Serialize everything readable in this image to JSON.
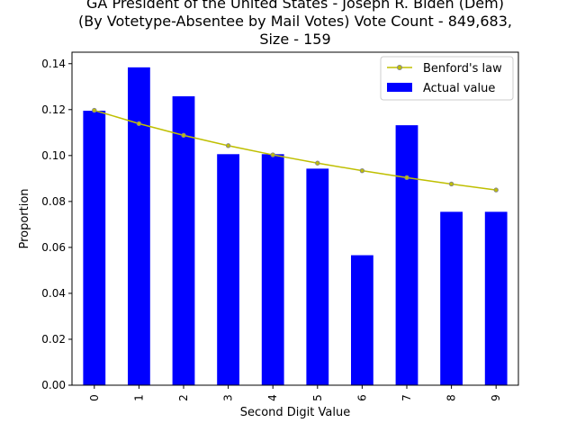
{
  "chart_data": {
    "type": "bar",
    "title_lines": [
      "GA President of the United States - Joseph R. Biden (Dem)",
      "(By Votetype-Absentee by Mail Votes) Vote Count - 849,683,",
      "Size - 159"
    ],
    "xlabel": "Second Digit Value",
    "ylabel": "Proportion",
    "categories": [
      "0",
      "1",
      "2",
      "3",
      "4",
      "5",
      "6",
      "7",
      "8",
      "9"
    ],
    "ylim": [
      0,
      0.145
    ],
    "yticks": [
      "0.00",
      "0.02",
      "0.04",
      "0.06",
      "0.08",
      "0.10",
      "0.12",
      "0.14"
    ],
    "grid": false,
    "legend_position": "top-right",
    "series": [
      {
        "name": "Benford's law",
        "kind": "line",
        "color": "#bfbf00",
        "values": [
          0.1197,
          0.1139,
          0.1088,
          0.1043,
          0.1003,
          0.0967,
          0.0934,
          0.0904,
          0.0876,
          0.085
        ]
      },
      {
        "name": "Actual value",
        "kind": "bar",
        "color": "#0000ff",
        "values": [
          0.1195,
          0.1384,
          0.1258,
          0.1006,
          0.1006,
          0.0943,
          0.0566,
          0.1132,
          0.0755,
          0.0755
        ]
      }
    ]
  }
}
